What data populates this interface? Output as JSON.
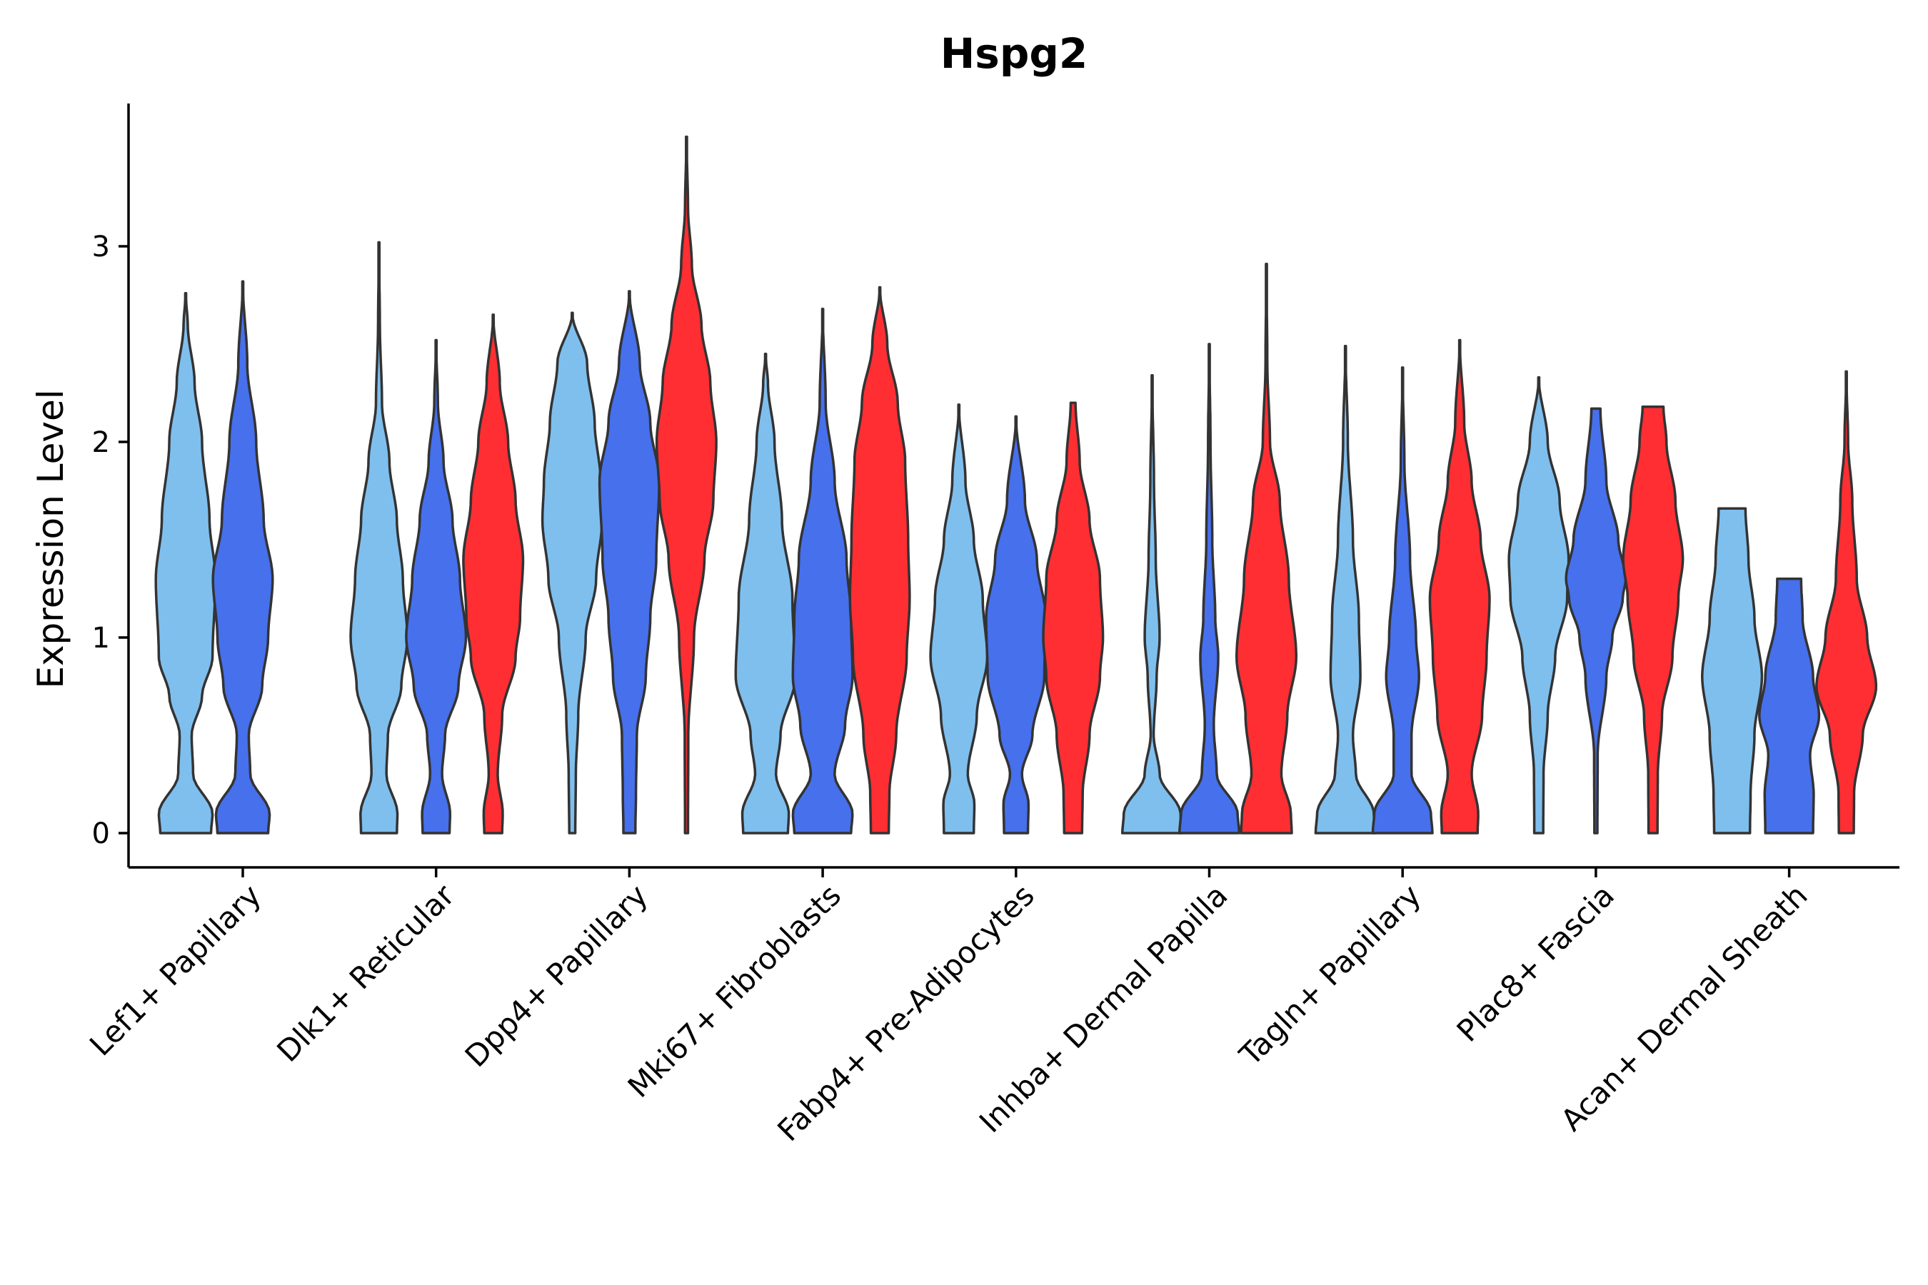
{
  "chart_data": {
    "type": "violin",
    "title": "Hspg2",
    "xlabel": "",
    "ylabel": "Expression Level",
    "ylim": [
      -0.18,
      3.75
    ],
    "yticks": [
      0,
      1,
      2,
      3
    ],
    "colors": {
      "light_blue": "#7FBFEE",
      "blue": "#4670EC",
      "red": "#FF2E33",
      "outline": "#333333"
    },
    "categories": [
      "Lef1+ Papillary",
      "Dlk1+ Reticular",
      "Dpp4+ Papillary",
      "Mki67+ Fibroblasts",
      "Fabp4+ Pre-Adipocytes",
      "Inhba+ Dermal Papilla",
      "Tagln+ Papillary",
      "Plac8+ Fascia",
      "Acan+ Dermal Sheath"
    ],
    "series_order": [
      "light_blue",
      "blue",
      "red"
    ],
    "violins": [
      {
        "category": 0,
        "color": "light_blue",
        "max": 2.76,
        "w": 0.95,
        "profile": [
          [
            0,
            0.85
          ],
          [
            0.1,
            0.9
          ],
          [
            0.3,
            0.25
          ],
          [
            0.5,
            0.2
          ],
          [
            0.7,
            0.55
          ],
          [
            0.9,
            0.9
          ],
          [
            1.3,
            1
          ],
          [
            1.6,
            0.8
          ],
          [
            2.0,
            0.55
          ],
          [
            2.3,
            0.3
          ],
          [
            2.6,
            0.07
          ],
          [
            2.76,
            0
          ]
        ]
      },
      {
        "category": 0,
        "color": "blue",
        "max": 2.82,
        "w": 0.95,
        "profile": [
          [
            0,
            0.85
          ],
          [
            0.1,
            0.9
          ],
          [
            0.3,
            0.25
          ],
          [
            0.5,
            0.2
          ],
          [
            0.75,
            0.65
          ],
          [
            1.0,
            0.85
          ],
          [
            1.3,
            1
          ],
          [
            1.6,
            0.7
          ],
          [
            2.0,
            0.45
          ],
          [
            2.4,
            0.15
          ],
          [
            2.82,
            0
          ]
        ]
      },
      {
        "category": 1,
        "color": "light_blue",
        "max": 3.02,
        "w": 0.95,
        "profile": [
          [
            0,
            0.6
          ],
          [
            0.1,
            0.62
          ],
          [
            0.3,
            0.25
          ],
          [
            0.5,
            0.3
          ],
          [
            0.75,
            0.75
          ],
          [
            1.0,
            0.95
          ],
          [
            1.3,
            0.8
          ],
          [
            1.6,
            0.6
          ],
          [
            1.9,
            0.35
          ],
          [
            2.2,
            0.1
          ],
          [
            2.6,
            0.03
          ],
          [
            3.02,
            0
          ]
        ]
      },
      {
        "category": 1,
        "color": "blue",
        "max": 2.52,
        "w": 0.95,
        "profile": [
          [
            0,
            0.45
          ],
          [
            0.1,
            0.47
          ],
          [
            0.3,
            0.2
          ],
          [
            0.5,
            0.3
          ],
          [
            0.75,
            0.75
          ],
          [
            1.0,
            1
          ],
          [
            1.3,
            0.8
          ],
          [
            1.6,
            0.55
          ],
          [
            1.9,
            0.25
          ],
          [
            2.2,
            0.06
          ],
          [
            2.52,
            0
          ]
        ]
      },
      {
        "category": 1,
        "color": "red",
        "max": 2.65,
        "w": 0.95,
        "profile": [
          [
            0,
            0.3
          ],
          [
            0.1,
            0.32
          ],
          [
            0.3,
            0.15
          ],
          [
            0.6,
            0.3
          ],
          [
            0.9,
            0.75
          ],
          [
            1.1,
            0.9
          ],
          [
            1.4,
            1
          ],
          [
            1.7,
            0.75
          ],
          [
            2.0,
            0.5
          ],
          [
            2.3,
            0.22
          ],
          [
            2.65,
            0
          ]
        ]
      },
      {
        "category": 2,
        "color": "light_blue",
        "max": 2.66,
        "w": 0.95,
        "profile": [
          [
            0,
            0.1
          ],
          [
            0.3,
            0.12
          ],
          [
            0.6,
            0.2
          ],
          [
            1.0,
            0.45
          ],
          [
            1.3,
            0.8
          ],
          [
            1.6,
            1
          ],
          [
            1.8,
            0.95
          ],
          [
            2.1,
            0.75
          ],
          [
            2.4,
            0.5
          ],
          [
            2.66,
            0
          ]
        ]
      },
      {
        "category": 2,
        "color": "blue",
        "max": 2.77,
        "w": 0.95,
        "profile": [
          [
            0,
            0.2
          ],
          [
            0.2,
            0.22
          ],
          [
            0.5,
            0.25
          ],
          [
            0.8,
            0.55
          ],
          [
            1.1,
            0.7
          ],
          [
            1.4,
            0.9
          ],
          [
            1.8,
            1
          ],
          [
            2.1,
            0.7
          ],
          [
            2.4,
            0.35
          ],
          [
            2.77,
            0
          ]
        ]
      },
      {
        "category": 2,
        "color": "red",
        "max": 3.56,
        "w": 0.95,
        "profile": [
          [
            0,
            0.05
          ],
          [
            0.5,
            0.06
          ],
          [
            1.0,
            0.25
          ],
          [
            1.4,
            0.6
          ],
          [
            1.7,
            0.9
          ],
          [
            2.0,
            1
          ],
          [
            2.3,
            0.8
          ],
          [
            2.6,
            0.5
          ],
          [
            2.9,
            0.18
          ],
          [
            3.2,
            0.05
          ],
          [
            3.56,
            0
          ]
        ]
      },
      {
        "category": 3,
        "color": "light_blue",
        "max": 2.45,
        "w": 0.95,
        "profile": [
          [
            0,
            0.75
          ],
          [
            0.1,
            0.78
          ],
          [
            0.3,
            0.35
          ],
          [
            0.5,
            0.5
          ],
          [
            0.8,
            1
          ],
          [
            1.2,
            0.9
          ],
          [
            1.6,
            0.55
          ],
          [
            2.0,
            0.3
          ],
          [
            2.3,
            0.08
          ],
          [
            2.45,
            0
          ]
        ]
      },
      {
        "category": 3,
        "color": "blue",
        "max": 2.68,
        "w": 0.95,
        "profile": [
          [
            0,
            0.95
          ],
          [
            0.1,
            1
          ],
          [
            0.3,
            0.4
          ],
          [
            0.55,
            0.75
          ],
          [
            0.8,
            1
          ],
          [
            1.1,
            0.95
          ],
          [
            1.4,
            0.8
          ],
          [
            1.8,
            0.4
          ],
          [
            2.2,
            0.1
          ],
          [
            2.68,
            0
          ]
        ]
      },
      {
        "category": 3,
        "color": "red",
        "max": 2.79,
        "w": 0.95,
        "profile": [
          [
            0,
            0.3
          ],
          [
            0.2,
            0.32
          ],
          [
            0.5,
            0.55
          ],
          [
            0.9,
            0.9
          ],
          [
            1.2,
            1
          ],
          [
            1.5,
            0.95
          ],
          [
            1.9,
            0.85
          ],
          [
            2.2,
            0.6
          ],
          [
            2.5,
            0.25
          ],
          [
            2.79,
            0
          ]
        ]
      },
      {
        "category": 4,
        "color": "light_blue",
        "max": 2.19,
        "w": 0.95,
        "profile": [
          [
            0,
            0.5
          ],
          [
            0.15,
            0.52
          ],
          [
            0.3,
            0.3
          ],
          [
            0.6,
            0.6
          ],
          [
            0.9,
            0.95
          ],
          [
            1.2,
            0.8
          ],
          [
            1.5,
            0.5
          ],
          [
            1.8,
            0.22
          ],
          [
            2.19,
            0
          ]
        ]
      },
      {
        "category": 4,
        "color": "blue",
        "max": 2.13,
        "w": 0.95,
        "profile": [
          [
            0,
            0.4
          ],
          [
            0.15,
            0.42
          ],
          [
            0.3,
            0.2
          ],
          [
            0.5,
            0.55
          ],
          [
            0.8,
            0.95
          ],
          [
            1.1,
            1
          ],
          [
            1.4,
            0.7
          ],
          [
            1.7,
            0.3
          ],
          [
            2.13,
            0
          ]
        ]
      },
      {
        "category": 4,
        "color": "red",
        "max": 2.2,
        "w": 0.95,
        "profile": [
          [
            0,
            0.3
          ],
          [
            0.2,
            0.32
          ],
          [
            0.5,
            0.55
          ],
          [
            0.8,
            0.9
          ],
          [
            1.0,
            1
          ],
          [
            1.3,
            0.9
          ],
          [
            1.6,
            0.55
          ],
          [
            1.9,
            0.22
          ],
          [
            2.2,
            0.08
          ]
        ]
      },
      {
        "category": 5,
        "color": "light_blue",
        "max": 2.34,
        "w": 0.95,
        "profile": [
          [
            0,
            1
          ],
          [
            0.1,
            0.95
          ],
          [
            0.3,
            0.25
          ],
          [
            0.5,
            0.05
          ],
          [
            0.8,
            0.15
          ],
          [
            1.0,
            0.25
          ],
          [
            1.4,
            0.12
          ],
          [
            1.8,
            0.06
          ],
          [
            2.34,
            0
          ]
        ]
      },
      {
        "category": 5,
        "color": "blue",
        "max": 2.5,
        "w": 0.95,
        "profile": [
          [
            0,
            1
          ],
          [
            0.1,
            0.95
          ],
          [
            0.3,
            0.25
          ],
          [
            0.55,
            0.15
          ],
          [
            0.9,
            0.3
          ],
          [
            1.1,
            0.2
          ],
          [
            1.5,
            0.1
          ],
          [
            2.0,
            0.04
          ],
          [
            2.5,
            0
          ]
        ]
      },
      {
        "category": 5,
        "color": "red",
        "max": 2.91,
        "w": 0.95,
        "profile": [
          [
            0,
            0.85
          ],
          [
            0.1,
            0.82
          ],
          [
            0.3,
            0.5
          ],
          [
            0.6,
            0.7
          ],
          [
            0.9,
            1
          ],
          [
            1.3,
            0.75
          ],
          [
            1.7,
            0.45
          ],
          [
            2.0,
            0.12
          ],
          [
            2.4,
            0.03
          ],
          [
            2.91,
            0
          ]
        ]
      },
      {
        "category": 6,
        "color": "light_blue",
        "max": 2.49,
        "w": 0.95,
        "profile": [
          [
            0,
            1
          ],
          [
            0.1,
            0.95
          ],
          [
            0.3,
            0.35
          ],
          [
            0.5,
            0.25
          ],
          [
            0.8,
            0.5
          ],
          [
            1.1,
            0.45
          ],
          [
            1.5,
            0.25
          ],
          [
            2.0,
            0.08
          ],
          [
            2.49,
            0
          ]
        ]
      },
      {
        "category": 6,
        "color": "blue",
        "max": 2.38,
        "w": 0.95,
        "profile": [
          [
            0,
            1
          ],
          [
            0.1,
            0.95
          ],
          [
            0.3,
            0.3
          ],
          [
            0.5,
            0.3
          ],
          [
            0.8,
            0.55
          ],
          [
            1.0,
            0.45
          ],
          [
            1.4,
            0.25
          ],
          [
            1.9,
            0.06
          ],
          [
            2.38,
            0
          ]
        ]
      },
      {
        "category": 6,
        "color": "red",
        "max": 2.52,
        "w": 0.95,
        "profile": [
          [
            0,
            0.6
          ],
          [
            0.1,
            0.62
          ],
          [
            0.3,
            0.4
          ],
          [
            0.6,
            0.75
          ],
          [
            0.9,
            0.9
          ],
          [
            1.2,
            1
          ],
          [
            1.5,
            0.7
          ],
          [
            1.8,
            0.4
          ],
          [
            2.1,
            0.15
          ],
          [
            2.52,
            0
          ]
        ]
      },
      {
        "category": 7,
        "color": "light_blue",
        "max": 2.33,
        "w": 0.95,
        "profile": [
          [
            0,
            0.15
          ],
          [
            0.3,
            0.16
          ],
          [
            0.6,
            0.3
          ],
          [
            0.9,
            0.55
          ],
          [
            1.2,
            0.95
          ],
          [
            1.4,
            1
          ],
          [
            1.7,
            0.7
          ],
          [
            2.0,
            0.3
          ],
          [
            2.33,
            0
          ]
        ]
      },
      {
        "category": 7,
        "color": "blue",
        "max": 2.17,
        "w": 0.95,
        "profile": [
          [
            0,
            0.05
          ],
          [
            0.4,
            0.06
          ],
          [
            0.8,
            0.35
          ],
          [
            1.0,
            0.55
          ],
          [
            1.2,
            0.9
          ],
          [
            1.3,
            1
          ],
          [
            1.5,
            0.75
          ],
          [
            1.8,
            0.35
          ],
          [
            2.17,
            0.15
          ]
        ]
      },
      {
        "category": 7,
        "color": "red",
        "max": 2.18,
        "w": 0.95,
        "profile": [
          [
            0,
            0.15
          ],
          [
            0.3,
            0.16
          ],
          [
            0.6,
            0.3
          ],
          [
            0.9,
            0.65
          ],
          [
            1.2,
            0.85
          ],
          [
            1.4,
            1
          ],
          [
            1.7,
            0.75
          ],
          [
            2.0,
            0.45
          ],
          [
            2.18,
            0.35
          ]
        ]
      },
      {
        "category": 8,
        "color": "light_blue",
        "max": 1.66,
        "w": 0.95,
        "profile": [
          [
            0,
            0.6
          ],
          [
            0.2,
            0.62
          ],
          [
            0.5,
            0.75
          ],
          [
            0.8,
            1
          ],
          [
            1.1,
            0.75
          ],
          [
            1.4,
            0.55
          ],
          [
            1.66,
            0.45
          ]
        ]
      },
      {
        "category": 8,
        "color": "blue",
        "max": 1.3,
        "w": 0.95,
        "profile": [
          [
            0,
            0.8
          ],
          [
            0.2,
            0.82
          ],
          [
            0.4,
            0.7
          ],
          [
            0.6,
            1
          ],
          [
            0.8,
            0.8
          ],
          [
            1.1,
            0.45
          ],
          [
            1.3,
            0.4
          ]
        ]
      },
      {
        "category": 8,
        "color": "red",
        "max": 2.36,
        "w": 0.95,
        "profile": [
          [
            0,
            0.25
          ],
          [
            0.2,
            0.26
          ],
          [
            0.5,
            0.55
          ],
          [
            0.75,
            1
          ],
          [
            1.0,
            0.7
          ],
          [
            1.3,
            0.35
          ],
          [
            1.7,
            0.2
          ],
          [
            2.0,
            0.06
          ],
          [
            2.36,
            0
          ]
        ]
      }
    ]
  }
}
